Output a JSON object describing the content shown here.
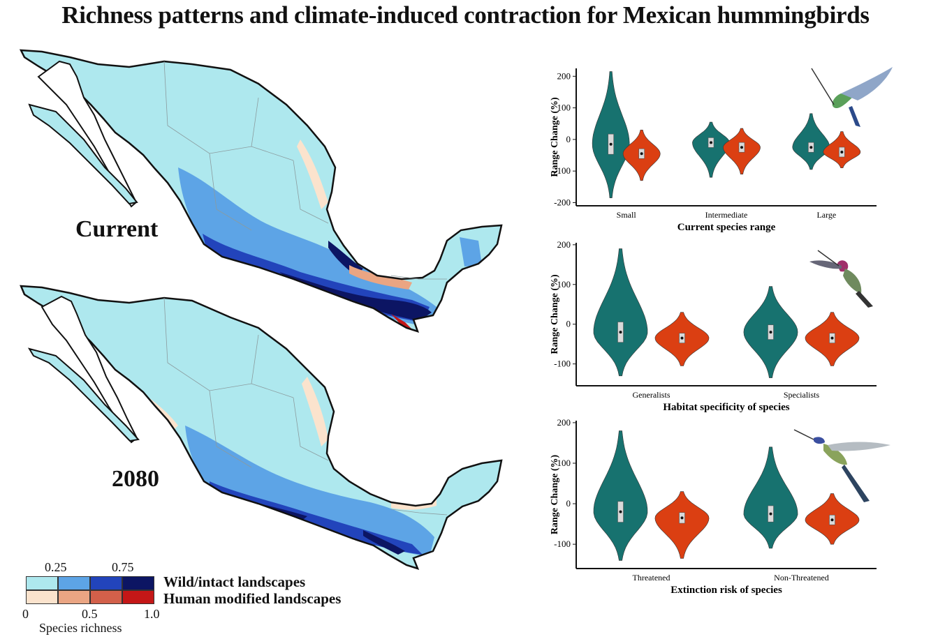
{
  "title": "Richness patterns and climate-induced contraction for Mexican hummingbirds",
  "maps": {
    "current_label": "Current",
    "future_label": "2080"
  },
  "legend": {
    "top_ticks": [
      "0.25",
      "0.75"
    ],
    "bottom_ticks": [
      "0",
      "0.5",
      "1.0"
    ],
    "row_labels": [
      "Wild/intact landscapes",
      "Human modified landscapes"
    ],
    "title": "Species richness",
    "wild_colors": [
      "#aee8ee",
      "#5da4e6",
      "#2244bb",
      "#0c1563"
    ],
    "human_colors": [
      "#fbe3cd",
      "#eaa583",
      "#d2604a",
      "#c41717"
    ]
  },
  "colors": {
    "teal": "#17726f",
    "orange": "#db3f12"
  },
  "chart_data": [
    {
      "type": "violin",
      "xlabel": "Current species range",
      "ylabel": "Range Change (%)",
      "yticks": [
        "200",
        "100",
        "0",
        "-100",
        "-200"
      ],
      "ytick_values": [
        200,
        100,
        0,
        -100,
        -200
      ],
      "ylim": [
        -210,
        225
      ],
      "categories": [
        "Small",
        "Intermediate",
        "Large"
      ],
      "series": [
        {
          "color": "#17726f",
          "medians": [
            -15,
            -10,
            -25
          ],
          "ranges": [
            [
              -185,
              215
            ],
            [
              -120,
              55
            ],
            [
              -95,
              82
            ]
          ]
        },
        {
          "color": "#db3f12",
          "medians": [
            -45,
            -25,
            -40
          ],
          "ranges": [
            [
              -130,
              30
            ],
            [
              -110,
              35
            ],
            [
              -90,
              25
            ]
          ]
        }
      ]
    },
    {
      "type": "violin",
      "xlabel": "Habitat specificity of species",
      "ylabel": "Range Change (%)",
      "yticks": [
        "200",
        "100",
        "0",
        "-100"
      ],
      "ytick_values": [
        200,
        100,
        0,
        -100
      ],
      "ylim": [
        -155,
        205
      ],
      "categories": [
        "Generalists",
        "Specialists"
      ],
      "series": [
        {
          "color": "#17726f",
          "medians": [
            -20,
            -20
          ],
          "ranges": [
            [
              -130,
              190
            ],
            [
              -135,
              95
            ]
          ]
        },
        {
          "color": "#db3f12",
          "medians": [
            -35,
            -35
          ],
          "ranges": [
            [
              -105,
              30
            ],
            [
              -105,
              30
            ]
          ]
        }
      ]
    },
    {
      "type": "violin",
      "xlabel": "Extinction risk of species",
      "ylabel": "Range Change (%)",
      "yticks": [
        "200",
        "100",
        "0",
        "-100"
      ],
      "ytick_values": [
        200,
        100,
        0,
        -100
      ],
      "ylim": [
        -160,
        205
      ],
      "categories": [
        "Threatened",
        "Non-Threatened"
      ],
      "series": [
        {
          "color": "#17726f",
          "medians": [
            -20,
            -25
          ],
          "ranges": [
            [
              -140,
              180
            ],
            [
              -110,
              140
            ]
          ]
        },
        {
          "color": "#db3f12",
          "medians": [
            -35,
            -40
          ],
          "ranges": [
            [
              -135,
              30
            ],
            [
              -100,
              25
            ]
          ]
        }
      ]
    }
  ]
}
